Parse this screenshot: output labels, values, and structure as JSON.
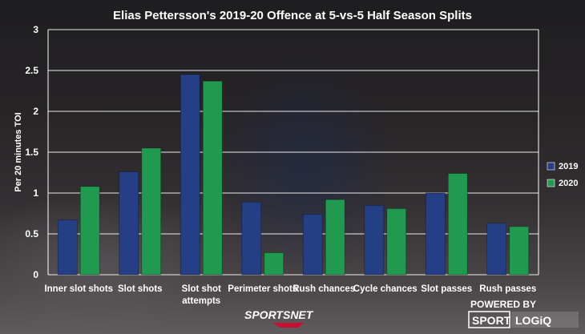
{
  "chart_data": {
    "type": "bar",
    "title": "Elias Pettersson's 2019-20 Offence at 5-vs-5 Half Season Splits",
    "ylabel": "Per 20 minutes TOI",
    "xlabel": "",
    "ylim": [
      0,
      3
    ],
    "yticks": [
      "0",
      "0.5",
      "1",
      "1.5",
      "2",
      "2.5",
      "3"
    ],
    "grid": true,
    "legend_position": "right",
    "categories": [
      [
        "Inner slot shots"
      ],
      [
        "Slot shots"
      ],
      [
        "Slot shot",
        "attempts"
      ],
      [
        "Perimeter shots"
      ],
      [
        "Rush chances"
      ],
      [
        "Cycle chances"
      ],
      [
        "Slot passes"
      ],
      [
        "Rush passes"
      ]
    ],
    "series": [
      {
        "name": "2019",
        "color": "#243f86",
        "values": [
          0.67,
          1.26,
          2.45,
          0.89,
          0.74,
          0.85,
          1.0,
          0.63
        ]
      },
      {
        "name": "2020",
        "color": "#1f9a4e",
        "values": [
          1.08,
          1.55,
          2.37,
          0.27,
          0.92,
          0.81,
          1.24,
          0.59
        ]
      }
    ]
  },
  "branding": {
    "network": "SPORTSNET",
    "powered_by": "POWERED BY",
    "sport": "SPORT",
    "logiq": "LOGiQ"
  }
}
